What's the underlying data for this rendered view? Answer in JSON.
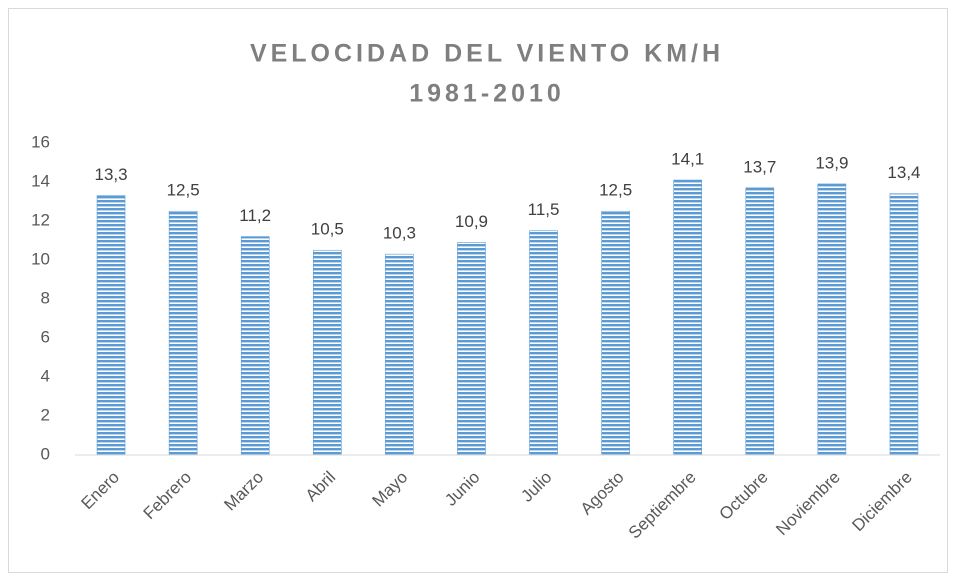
{
  "chart_data": {
    "type": "bar",
    "title": "VELOCIDAD DEL VIENTO KM/H",
    "subtitle": "1981-2010",
    "categories": [
      "Enero",
      "Febrero",
      "Marzo",
      "Abril",
      "Mayo",
      "Junio",
      "Julio",
      "Agosto",
      "Septiembre",
      "Octubre",
      "Noviembre",
      "Diciembre"
    ],
    "values": [
      13.3,
      12.5,
      11.2,
      10.5,
      10.3,
      10.9,
      11.5,
      12.5,
      14.1,
      13.7,
      13.9,
      13.4
    ],
    "value_labels": [
      "13,3",
      "12,5",
      "11,2",
      "10,5",
      "10,3",
      "10,9",
      "11,5",
      "12,5",
      "14,1",
      "13,7",
      "13,9",
      "13,4"
    ],
    "color": "#5b9bd5",
    "ylim": [
      0,
      16
    ],
    "yticks": [
      0,
      2,
      4,
      6,
      8,
      10,
      12,
      14,
      16
    ],
    "grid": false
  }
}
